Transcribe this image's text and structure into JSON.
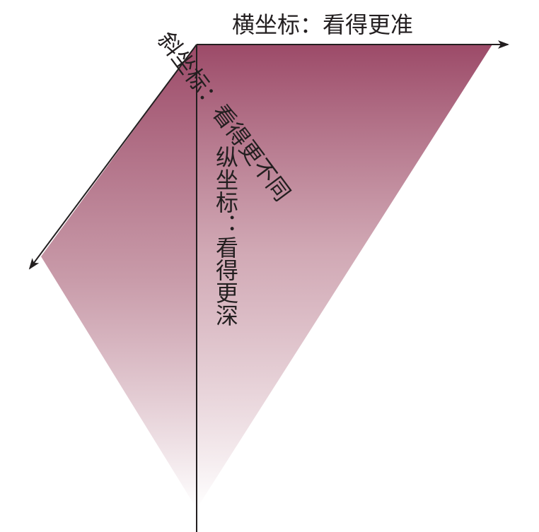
{
  "axes": {
    "horizontal_label": "横坐标：看得更准",
    "vertical_label": "纵坐标：看得更深",
    "diagonal_label": "斜坐标：看得更不同"
  },
  "colors": {
    "gradient_top": "#9c4a68",
    "gradient_bottom": "#ffffff",
    "axis_line": "#231f20"
  }
}
